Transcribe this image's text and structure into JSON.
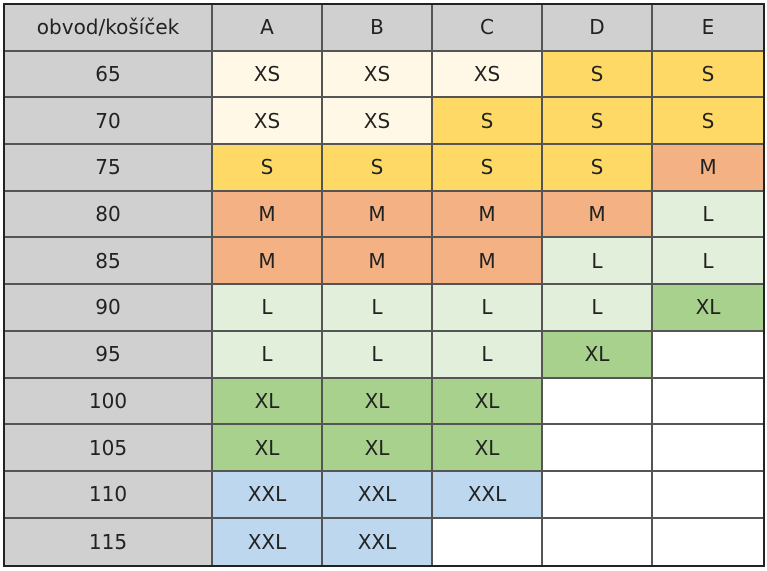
{
  "table": {
    "header": [
      "obvod/košíček",
      "A",
      "B",
      "C",
      "D",
      "E"
    ],
    "rows": [
      [
        "65",
        "XS",
        "XS",
        "XS",
        "S",
        "S"
      ],
      [
        "70",
        "XS",
        "XS",
        "S",
        "S",
        "S"
      ],
      [
        "75",
        "S",
        "S",
        "S",
        "S",
        "M"
      ],
      [
        "80",
        "M",
        "M",
        "M",
        "M",
        "L"
      ],
      [
        "85",
        "M",
        "M",
        "M",
        "L",
        "L"
      ],
      [
        "90",
        "L",
        "L",
        "L",
        "L",
        "XL"
      ],
      [
        "95",
        "L",
        "L",
        "L",
        "XL",
        null
      ],
      [
        "100",
        "XL",
        "XL",
        "XL",
        null,
        null
      ],
      [
        "105",
        "XL",
        "XL",
        "XL",
        null,
        null
      ],
      [
        "110",
        "XXL",
        "XXL",
        "XXL",
        null,
        null
      ],
      [
        "115",
        "XXL",
        "XXL",
        null,
        null,
        null
      ]
    ],
    "colors": {
      "XS": "#fff8e6",
      "S": "#ffd966",
      "M": "#f4b183",
      "L": "#e2efda",
      "XL": "#a9d18e",
      "XXL": "#bdd7ee"
    },
    "header_color": "#d0d0d0"
  }
}
